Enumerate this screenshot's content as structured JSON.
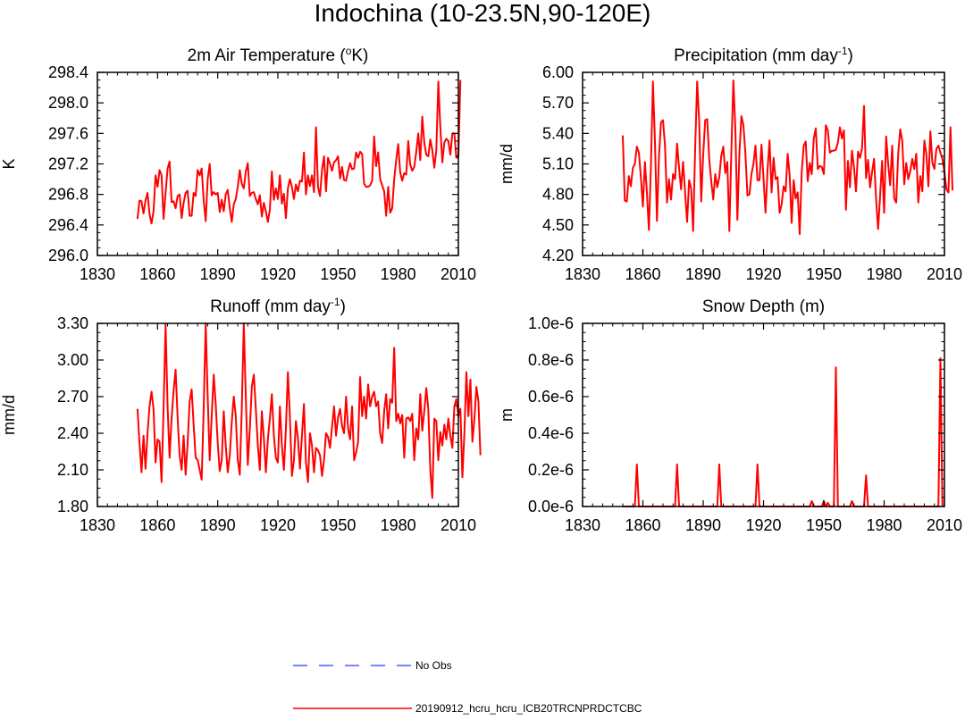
{
  "page_title": "Indochina (10-23.5N,90-120E)",
  "legend": [
    {
      "label": "No Obs",
      "color": "#4a5cff",
      "style": "dashed"
    },
    {
      "label": "20190912_hcru_hcru_ICB20TRCNPRDCTCBC",
      "color": "#ff0000",
      "style": "solid"
    }
  ],
  "chart_data": [
    {
      "type": "line",
      "title": "2m Air Temperature (",
      "title_sup": "o",
      "title_tail": "K)",
      "ylabel": "K",
      "xlabel": "",
      "xlim": [
        1830,
        2010
      ],
      "xticks": [
        1830,
        1860,
        1890,
        1920,
        1950,
        1980,
        2010
      ],
      "xtick_labels": [
        "1830",
        "1860",
        "1890",
        "1920",
        "1950",
        "1980",
        "2010"
      ],
      "ylim": [
        296.0,
        298.4
      ],
      "yticks": [
        296.0,
        296.4,
        296.8,
        297.2,
        297.6,
        298.0,
        298.4
      ],
      "ytick_labels": [
        "296.0",
        "296.4",
        "296.8",
        "297.2",
        "297.6",
        "298.0",
        "298.4"
      ],
      "series": [
        {
          "name": "20190912_hcru_hcru_ICB20TRCNPRDCTCBC",
          "color": "#ff0000",
          "x_start": 1850,
          "values": [
            296.48,
            296.72,
            296.71,
            296.55,
            296.72,
            296.82,
            296.54,
            296.42,
            296.58,
            297.05,
            296.9,
            297.12,
            297.05,
            296.48,
            296.82,
            297.14,
            297.23,
            296.7,
            296.71,
            296.62,
            296.78,
            296.8,
            296.49,
            296.69,
            296.82,
            296.85,
            296.52,
            296.52,
            296.82,
            296.78,
            297.12,
            297.05,
            297.14,
            296.72,
            296.45,
            297.0,
            297.2,
            296.79,
            296.83,
            296.8,
            296.82,
            296.57,
            296.73,
            296.58,
            296.8,
            296.86,
            296.62,
            296.44,
            296.67,
            296.74,
            296.9,
            297.12,
            296.94,
            296.88,
            297.1,
            297.21,
            296.78,
            296.82,
            296.83,
            296.74,
            296.67,
            296.79,
            296.51,
            296.69,
            296.58,
            296.44,
            296.6,
            297.1,
            296.73,
            296.88,
            296.74,
            297.05,
            296.68,
            296.81,
            296.49,
            296.88,
            297.0,
            296.9,
            296.74,
            296.93,
            296.84,
            296.98,
            296.97,
            297.35,
            296.8,
            297.05,
            296.91,
            297.05,
            296.83,
            297.68,
            296.9,
            296.78,
            297.12,
            297.3,
            296.84,
            297.28,
            297.2,
            297.11,
            297.22,
            297.25,
            297.3,
            297.01,
            297.16,
            296.99,
            296.98,
            297.11,
            297.21,
            297.13,
            297.14,
            297.35,
            297.28,
            297.36,
            297.33,
            296.94,
            296.9,
            296.9,
            296.92,
            296.98,
            297.56,
            297.17,
            297.35,
            297.0,
            296.92,
            296.84,
            296.52,
            296.9,
            296.56,
            296.62,
            297.0,
            297.25,
            297.46,
            297.09,
            296.98,
            297.08,
            297.06,
            297.5,
            297.19,
            297.11,
            297.16,
            297.36,
            297.6,
            297.25,
            297.82,
            297.48,
            297.32,
            297.3,
            297.52,
            297.38,
            297.15,
            297.38,
            298.28,
            297.68,
            297.22,
            297.48,
            297.53,
            297.5,
            297.32,
            297.6,
            297.6,
            297.28,
            297.3,
            298.3
          ]
        }
      ]
    },
    {
      "type": "line",
      "title": "Precipitation (mm day",
      "title_sup": "-1",
      "title_tail": ")",
      "ylabel": "mm/d",
      "xlabel": "",
      "xlim": [
        1830,
        2010
      ],
      "xticks": [
        1830,
        1860,
        1890,
        1920,
        1950,
        1980,
        2010
      ],
      "xtick_labels": [
        "1830",
        "1860",
        "1890",
        "1920",
        "1950",
        "1980",
        "2010"
      ],
      "ylim": [
        4.2,
        6.0
      ],
      "yticks": [
        4.2,
        4.5,
        4.8,
        5.1,
        5.4,
        5.7,
        6.0
      ],
      "ytick_labels": [
        "4.20",
        "4.50",
        "4.80",
        "5.10",
        "5.40",
        "5.70",
        "6.00"
      ],
      "series": [
        {
          "name": "20190912_hcru_hcru_ICB20TRCNPRDCTCBC",
          "color": "#ff0000",
          "x_start": 1850,
          "values": [
            5.38,
            4.74,
            4.73,
            4.98,
            4.88,
            5.06,
            5.1,
            5.27,
            5.21,
            4.97,
            4.68,
            5.12,
            4.82,
            4.45,
            5.08,
            5.91,
            5.32,
            4.54,
            5.17,
            5.51,
            5.53,
            5.28,
            4.72,
            4.95,
            4.75,
            5.0,
            4.95,
            5.3,
            5.06,
            4.85,
            5.12,
            4.82,
            4.53,
            4.94,
            4.86,
            4.44,
            5.25,
            5.91,
            5.52,
            4.73,
            5.19,
            5.53,
            5.54,
            5.15,
            4.93,
            4.75,
            5.0,
            4.87,
            4.97,
            5.18,
            5.27,
            5.01,
            5.12,
            4.44,
            5.22,
            5.92,
            5.44,
            4.55,
            5.2,
            5.57,
            5.48,
            5.2,
            4.79,
            4.8,
            5.0,
            5.1,
            5.28,
            4.94,
            4.94,
            5.29,
            4.96,
            4.62,
            5.04,
            5.33,
            4.82,
            5.16,
            4.95,
            4.97,
            4.62,
            4.7,
            4.88,
            4.83,
            5.2,
            4.99,
            4.52,
            4.94,
            4.76,
            4.82,
            4.41,
            5.02,
            5.28,
            5.32,
            4.93,
            5.11,
            5.0,
            5.35,
            5.45,
            5.05,
            5.08,
            5.07,
            5.0,
            5.48,
            5.43,
            5.21,
            5.23,
            5.23,
            5.24,
            5.31,
            5.46,
            5.35,
            5.43,
            4.65,
            5.13,
            4.87,
            5.23,
            5.07,
            4.83,
            5.22,
            5.16,
            5.25,
            5.67,
            4.96,
            5.14,
            4.87,
            5.02,
            5.15,
            4.75,
            4.46,
            4.79,
            5.13,
            4.62,
            5.37,
            5.1,
            4.89,
            5.28,
            4.76,
            4.72,
            5.2,
            5.44,
            5.33,
            4.9,
            5.11,
            4.95,
            5.03,
            5.15,
            5.05,
            5.2,
            4.72,
            4.98,
            4.83,
            5.33,
            5.2,
            4.88,
            5.42,
            5.11,
            5.05,
            5.25,
            5.28,
            5.21,
            5.15,
            5.02,
            4.85,
            4.82,
            5.46,
            4.84
          ]
        }
      ]
    },
    {
      "type": "line",
      "title": "Runoff (mm day",
      "title_sup": "-1",
      "title_tail": ")",
      "ylabel": "mm/d",
      "xlabel": "",
      "xlim": [
        1830,
        2010
      ],
      "xticks": [
        1830,
        1860,
        1890,
        1920,
        1950,
        1980,
        2010
      ],
      "xtick_labels": [
        "1830",
        "1860",
        "1890",
        "1920",
        "1950",
        "1980",
        "2010"
      ],
      "ylim": [
        1.8,
        3.3
      ],
      "yticks": [
        1.8,
        2.1,
        2.4,
        2.7,
        3.0,
        3.3
      ],
      "ytick_labels": [
        "1.80",
        "2.10",
        "2.40",
        "2.70",
        "3.00",
        "3.30"
      ],
      "series": [
        {
          "name": "20190912_hcru_hcru_ICB20TRCNPRDCTCBC",
          "color": "#ff0000",
          "x_start": 1850,
          "values": [
            2.6,
            2.32,
            2.08,
            2.38,
            2.11,
            2.4,
            2.62,
            2.74,
            2.6,
            2.16,
            2.35,
            2.33,
            2.0,
            2.6,
            3.29,
            2.62,
            2.2,
            2.52,
            2.75,
            2.92,
            2.53,
            2.22,
            2.1,
            2.38,
            2.06,
            2.32,
            2.66,
            2.76,
            2.47,
            2.2,
            2.18,
            2.1,
            2.02,
            2.6,
            3.3,
            2.7,
            2.18,
            2.54,
            2.88,
            2.64,
            2.32,
            2.09,
            2.18,
            2.58,
            2.3,
            2.08,
            2.22,
            2.49,
            2.7,
            2.54,
            2.18,
            2.06,
            2.6,
            3.3,
            2.7,
            2.14,
            2.43,
            2.78,
            2.88,
            2.6,
            2.3,
            2.1,
            2.58,
            2.36,
            2.08,
            2.35,
            2.52,
            2.72,
            2.38,
            2.2,
            2.16,
            2.62,
            2.3,
            2.1,
            2.44,
            2.9,
            2.53,
            2.05,
            2.18,
            2.5,
            2.36,
            2.11,
            2.38,
            2.64,
            2.16,
            2.0,
            2.4,
            2.3,
            2.08,
            2.28,
            2.26,
            2.22,
            2.05,
            2.18,
            2.4,
            2.37,
            2.28,
            2.45,
            2.62,
            2.38,
            2.53,
            2.6,
            2.46,
            2.4,
            2.7,
            2.44,
            2.35,
            2.62,
            2.18,
            2.24,
            2.33,
            2.86,
            2.54,
            2.7,
            2.52,
            2.8,
            2.62,
            2.7,
            2.74,
            2.62,
            2.66,
            2.4,
            2.32,
            2.58,
            2.72,
            2.44,
            2.68,
            2.65,
            3.1,
            2.5,
            2.56,
            2.48,
            2.55,
            2.2,
            2.52,
            2.53,
            2.5,
            2.56,
            2.18,
            2.44,
            2.35,
            2.72,
            2.42,
            2.58,
            2.77,
            2.6,
            2.1,
            1.87,
            2.52,
            2.5,
            2.18,
            2.41,
            2.3,
            2.47,
            2.35,
            2.52,
            2.38,
            2.28,
            2.62,
            2.68,
            2.54,
            2.6,
            2.04,
            2.4,
            2.9,
            2.54,
            2.84,
            2.33,
            2.52,
            2.78,
            2.66,
            2.22
          ]
        }
      ]
    },
    {
      "type": "line",
      "title": "Snow Depth (m)",
      "title_sup": "",
      "title_tail": "",
      "ylabel": "m",
      "xlabel": "",
      "xlim": [
        1830,
        2010
      ],
      "xticks": [
        1830,
        1860,
        1890,
        1920,
        1950,
        1980,
        2010
      ],
      "xtick_labels": [
        "1830",
        "1860",
        "1890",
        "1920",
        "1950",
        "1980",
        "2010"
      ],
      "ylim": [
        0.0,
        1e-06
      ],
      "yticks": [
        0.0,
        2e-07,
        4e-07,
        6e-07,
        8e-07,
        1e-06
      ],
      "ytick_labels": [
        "0.0e-6",
        "0.2e-6",
        "0.4e-6",
        "0.6e-6",
        "0.8e-6",
        "1.0e-6"
      ],
      "series": [
        {
          "name": "20190912_hcru_hcru_ICB20TRCNPRDCTCBC",
          "color": "#ff0000",
          "points": [
            [
              1850,
              0
            ],
            [
              1856,
              0
            ],
            [
              1857,
              2.3e-07
            ],
            [
              1858,
              0
            ],
            [
              1876,
              0
            ],
            [
              1877,
              2.3e-07
            ],
            [
              1878,
              0
            ],
            [
              1897,
              0
            ],
            [
              1898,
              2.3e-07
            ],
            [
              1899,
              0
            ],
            [
              1916,
              0
            ],
            [
              1917,
              2.3e-07
            ],
            [
              1918,
              0
            ],
            [
              1943,
              0
            ],
            [
              1944,
              3e-08
            ],
            [
              1945,
              0
            ],
            [
              1949,
              0
            ],
            [
              1950,
              3e-08
            ],
            [
              1951,
              0
            ],
            [
              1952,
              2e-08
            ],
            [
              1953,
              0
            ],
            [
              1955,
              0
            ],
            [
              1956,
              7.6e-07
            ],
            [
              1957,
              0
            ],
            [
              1963,
              0
            ],
            [
              1964,
              3e-08
            ],
            [
              1965,
              0
            ],
            [
              1970,
              0
            ],
            [
              1971,
              1.7e-07
            ],
            [
              1972,
              0
            ],
            [
              2007,
              0
            ],
            [
              2008,
              8.1e-07
            ],
            [
              2009,
              0
            ]
          ]
        }
      ]
    }
  ]
}
